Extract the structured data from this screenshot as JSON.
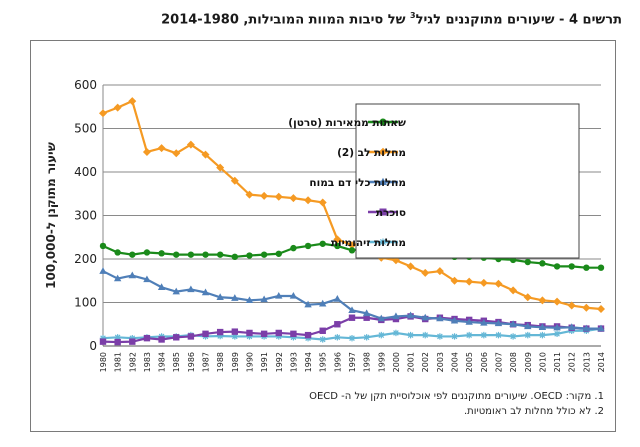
{
  "title_prefix": "תרשים 4 - שיעורים מתוקננים לגיל",
  "title_sup": "3",
  "title_suffix": "של סיבות המוות המובילות, 2014-1980",
  "notes": [
    "1. מקור: OECD. שיעורים מתוקננים לפי אוכלוסיית תקן של ה- OECD",
    "2. לא כולל מחלות לב ראומטיות."
  ],
  "chart_data": {
    "type": "line",
    "ylabel": "שיעור מתוקנן ל-100,000",
    "xlabel": "",
    "ylim": [
      0,
      600
    ],
    "yticks": [
      0,
      100,
      200,
      300,
      400,
      500,
      600
    ],
    "grid": "horizontal",
    "legend_position": "top-right",
    "categories": [
      "1980",
      "1981",
      "1982",
      "1983",
      "1984",
      "1985",
      "1986",
      "1987",
      "1988",
      "1989",
      "1990",
      "1991",
      "1992",
      "1993",
      "1994",
      "1995",
      "1996",
      "1997",
      "1998",
      "1999",
      "2000",
      "2001",
      "2002",
      "2003",
      "2004",
      "2005",
      "2006",
      "2007",
      "2008",
      "2009",
      "2010",
      "2011",
      "2012",
      "2013",
      "2014"
    ],
    "series": [
      {
        "name": "שאתות ממאירות (סרטן)",
        "color": "#1a8a1a",
        "marker": "circle",
        "values": [
          230,
          215,
          210,
          215,
          213,
          210,
          210,
          210,
          210,
          205,
          208,
          210,
          212,
          225,
          230,
          235,
          230,
          220,
          225,
          215,
          213,
          215,
          213,
          213,
          205,
          205,
          203,
          200,
          198,
          193,
          190,
          183,
          183,
          180,
          180
        ]
      },
      {
        "name": "מחלות לב (2)",
        "color": "#f59a23",
        "marker": "diamond",
        "values": [
          535,
          548,
          563,
          446,
          455,
          443,
          463,
          440,
          410,
          380,
          348,
          345,
          343,
          340,
          335,
          330,
          245,
          232,
          238,
          203,
          197,
          183,
          168,
          172,
          150,
          148,
          145,
          143,
          128,
          112,
          105,
          102,
          93,
          88,
          85
        ]
      },
      {
        "name": "מחלות כלי דם במוח",
        "color": "#4f7fb8",
        "marker": "triangle",
        "values": [
          172,
          155,
          162,
          153,
          135,
          125,
          130,
          123,
          112,
          110,
          105,
          107,
          115,
          115,
          95,
          97,
          108,
          82,
          75,
          63,
          68,
          70,
          65,
          63,
          58,
          55,
          53,
          52,
          50,
          45,
          43,
          42,
          43,
          40,
          40
        ]
      },
      {
        "name": "סוכרת",
        "color": "#7b3ea8",
        "marker": "square",
        "values": [
          10,
          9,
          10,
          18,
          15,
          20,
          22,
          28,
          32,
          33,
          30,
          28,
          30,
          28,
          25,
          35,
          50,
          65,
          65,
          60,
          62,
          68,
          62,
          65,
          62,
          60,
          58,
          55,
          50,
          48,
          45,
          45,
          42,
          40,
          40
        ]
      },
      {
        "name": "מחלות זיהומיות",
        "color": "#64b7d6",
        "marker": "star",
        "values": [
          18,
          20,
          18,
          20,
          22,
          22,
          25,
          22,
          23,
          22,
          22,
          22,
          22,
          20,
          18,
          15,
          20,
          18,
          20,
          25,
          30,
          25,
          25,
          22,
          22,
          25,
          25,
          25,
          22,
          25,
          25,
          28,
          35,
          35,
          40
        ]
      }
    ]
  }
}
